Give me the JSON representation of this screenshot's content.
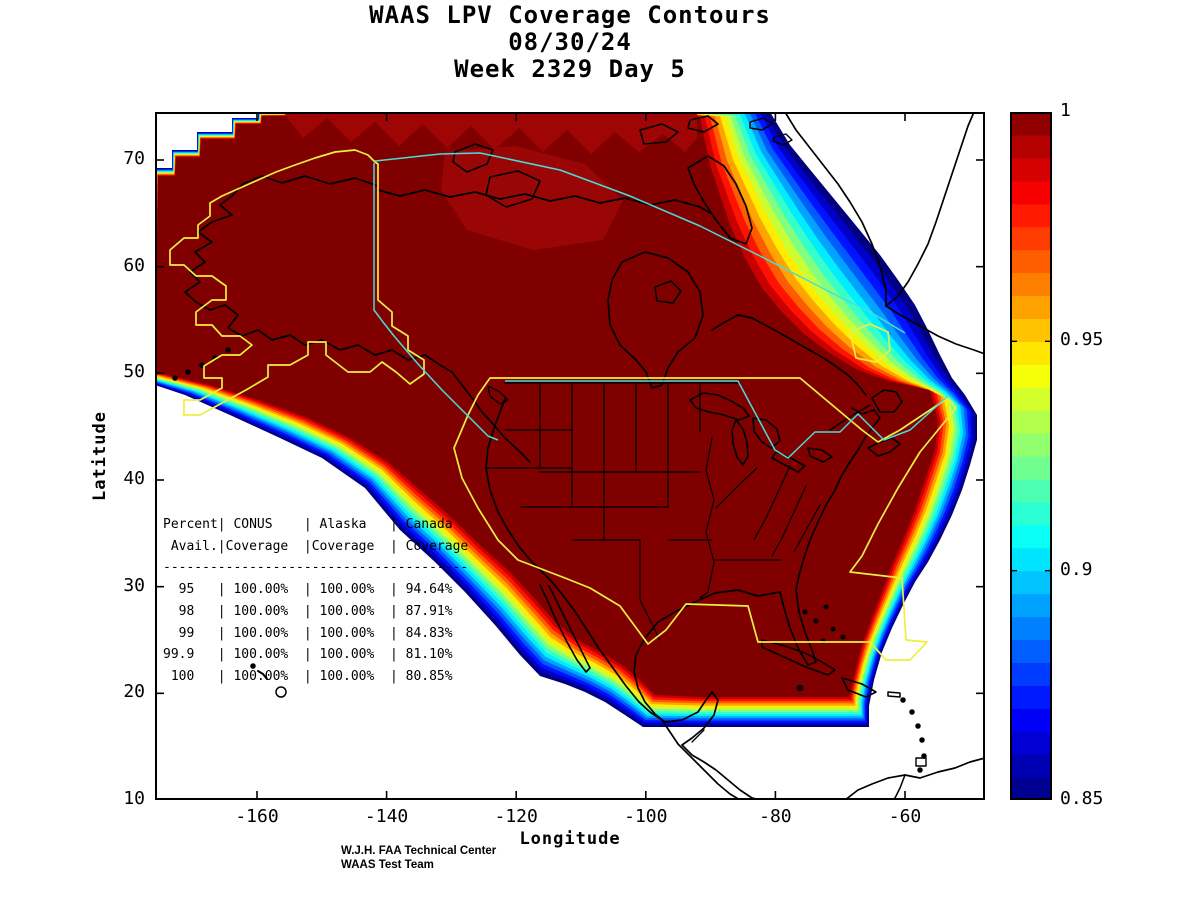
{
  "title": {
    "line1": "WAAS LPV Coverage Contours",
    "line2": "08/30/24",
    "line3": "Week 2329 Day 5"
  },
  "axes": {
    "xlabel": "Longitude",
    "ylabel": "Latitude",
    "xticks": [
      -160,
      -140,
      -120,
      -100,
      -80,
      -60
    ],
    "yticks": [
      70,
      60,
      50,
      40,
      30,
      20,
      10
    ],
    "xrange": [
      -176,
      -48
    ],
    "yrange": [
      10,
      75
    ]
  },
  "colorbar": {
    "min": 0.85,
    "max": 1,
    "ticks": [
      1,
      0.95,
      0.9,
      0.85
    ],
    "tick_labels": [
      "1",
      "0.95",
      "0.9",
      "0.85"
    ],
    "colormap": "jet",
    "steps": 30
  },
  "coverage_table": {
    "lines": [
      "Percent| CONUS    | Alaska   | Canada",
      " Avail.|Coverage  |Coverage  | Coverage",
      "---------------------------------------",
      "  95   | 100.00%  | 100.00%  | 94.64%",
      "  98   | 100.00%  | 100.00%  | 87.91%",
      "  99   | 100.00%  | 100.00%  | 84.83%",
      "99.9   | 100.00%  | 100.00%  | 81.10%",
      " 100   | 100.00%  | 100.00%  | 80.85%"
    ]
  },
  "footer": {
    "line1": "W.J.H. FAA Technical Center",
    "line2": "WAAS Test Team"
  },
  "map_overlays": {
    "yellow_boundary_color": "#efef40",
    "cyan_boundary_color": "#48dcdc",
    "coastline_color": "#000000",
    "core_color": "#800000",
    "no_data_color": "#ffffff"
  },
  "chart_data": {
    "type": "heatmap",
    "title": "WAAS LPV Coverage Contours",
    "date": "08/30/24",
    "week": 2329,
    "day": 5,
    "xlabel": "Longitude",
    "ylabel": "Latitude",
    "xlim": [
      -176,
      -48
    ],
    "ylim": [
      10,
      75
    ],
    "colorbar_range": [
      0.85,
      1
    ],
    "colormap": "jet",
    "coverage_stats": {
      "columns": [
        "Percent Avail.",
        "CONUS Coverage",
        "Alaska Coverage",
        "Canada Coverage"
      ],
      "rows": [
        [
          "95",
          "100.00%",
          "100.00%",
          "94.64%"
        ],
        [
          "98",
          "100.00%",
          "100.00%",
          "87.91%"
        ],
        [
          "99",
          "100.00%",
          "100.00%",
          "84.83%"
        ],
        [
          "99.9",
          "100.00%",
          "100.00%",
          "81.10%"
        ],
        [
          "100",
          "100.00%",
          "100.00%",
          "80.85%"
        ]
      ]
    }
  }
}
